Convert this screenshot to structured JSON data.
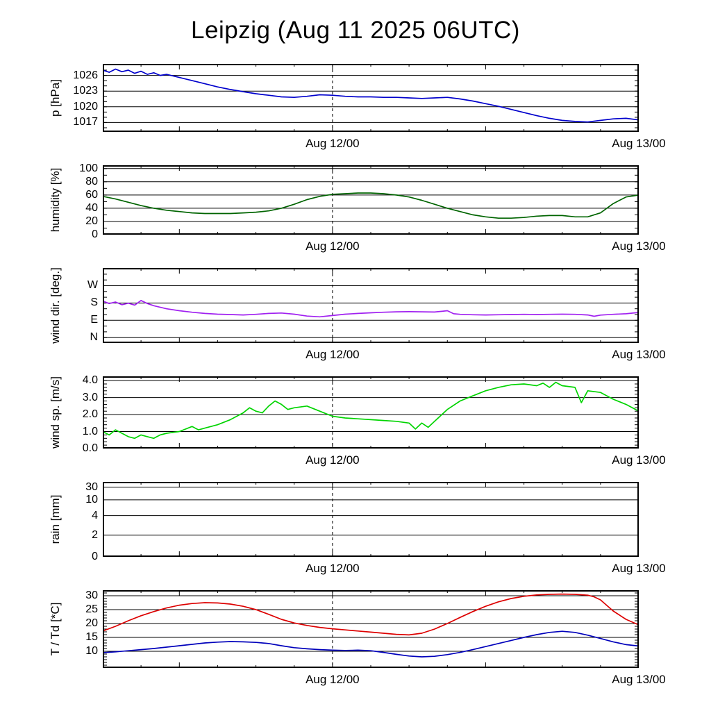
{
  "title": "Leipzig (Aug 11 2025 06UTC)",
  "colors": {
    "pressure": "#0000cc",
    "humidity": "#006400",
    "wind_direction": "#a020f0",
    "wind_speed": "#00d400",
    "rain": "#000000",
    "temperature": "#dd0000",
    "dewpoint": "#0000bb",
    "axes": "#000000",
    "background": "#ffffff"
  },
  "chart_data": {
    "type": "line",
    "title": "Leipzig (Aug 11 2025 06UTC)",
    "x": {
      "description": "time axis, hours since Aug 11 2025 00UTC, plot spans Aug 11 06UTC to Aug 13 00UTC",
      "start": 6,
      "end": 48,
      "major_ticks": [
        {
          "hour": 24,
          "label": "Aug 12/00"
        },
        {
          "hour": 48,
          "label": "Aug 13/00"
        }
      ],
      "dashed_line_hour": 24
    },
    "panels": [
      {
        "id": "pressure",
        "ylabel": "p [hPa]",
        "ylim": [
          1015.2,
          1028.2
        ],
        "yminor": 1,
        "yticks": [
          {
            "value": 1017,
            "label": "1017"
          },
          {
            "value": 1020,
            "label": "1020"
          },
          {
            "value": 1023,
            "label": "1023"
          },
          {
            "value": 1026,
            "label": "1026"
          }
        ],
        "series": [
          {
            "name": "pressure",
            "color": "#0000cc",
            "hours": [
              6,
              6.5,
              7,
              7.5,
              8,
              8.5,
              9,
              9.5,
              10,
              10.5,
              11,
              12,
              13,
              14,
              15,
              16,
              17,
              18,
              19,
              20,
              21,
              22,
              23,
              24,
              25,
              26,
              27,
              28,
              29,
              30,
              31,
              32,
              33,
              34,
              35,
              36,
              37,
              38,
              39,
              40,
              41,
              42,
              43,
              44,
              45,
              46,
              47,
              48
            ],
            "values": [
              1027.0,
              1026.6,
              1027.2,
              1026.7,
              1027.0,
              1026.4,
              1026.8,
              1026.2,
              1026.5,
              1026.0,
              1026.2,
              1025.6,
              1025.0,
              1024.4,
              1023.8,
              1023.3,
              1022.9,
              1022.5,
              1022.2,
              1021.9,
              1021.8,
              1022.0,
              1022.3,
              1022.2,
              1022.0,
              1021.9,
              1021.9,
              1021.8,
              1021.8,
              1021.7,
              1021.6,
              1021.7,
              1021.8,
              1021.5,
              1021.1,
              1020.6,
              1020.1,
              1019.5,
              1018.9,
              1018.3,
              1017.8,
              1017.4,
              1017.2,
              1017.1,
              1017.4,
              1017.7,
              1017.8,
              1017.5
            ]
          }
        ]
      },
      {
        "id": "humidity",
        "ylabel": "humidity [%]",
        "ylim": [
          0,
          105
        ],
        "yminor": 10,
        "yticks": [
          {
            "value": 0,
            "label": "0"
          },
          {
            "value": 20,
            "label": "20"
          },
          {
            "value": 40,
            "label": "40"
          },
          {
            "value": 60,
            "label": "60"
          },
          {
            "value": 80,
            "label": "80"
          },
          {
            "value": 100,
            "label": "100"
          }
        ],
        "series": [
          {
            "name": "humidity",
            "color": "#006400",
            "hours": [
              6,
              7,
              8,
              9,
              10,
              11,
              12,
              13,
              14,
              15,
              16,
              17,
              18,
              19,
              20,
              21,
              22,
              23,
              24,
              25,
              26,
              27,
              28,
              29,
              30,
              31,
              32,
              33,
              34,
              35,
              36,
              37,
              38,
              39,
              40,
              41,
              42,
              43,
              44,
              45,
              46,
              47,
              48
            ],
            "values": [
              58,
              54,
              49,
              44,
              40,
              37,
              35,
              33,
              32,
              32,
              32,
              33,
              34,
              36,
              40,
              46,
              53,
              58,
              61,
              62,
              63,
              63,
              62,
              60,
              57,
              52,
              46,
              40,
              35,
              30,
              27,
              25,
              25,
              26,
              28,
              29,
              29,
              27,
              27,
              33,
              47,
              57,
              60
            ]
          }
        ]
      },
      {
        "id": "wind-direction",
        "ylabel": "wind dir. [deg.]",
        "ylim": [
          -28,
          362
        ],
        "yminor": 30,
        "yticks": [
          {
            "value": 0,
            "label": "N"
          },
          {
            "value": 90,
            "label": "E"
          },
          {
            "value": 180,
            "label": "S"
          },
          {
            "value": 270,
            "label": "W"
          }
        ],
        "series": [
          {
            "name": "wind direction",
            "color": "#a020f0",
            "hours": [
              6,
              6.5,
              7,
              7.5,
              8,
              8.5,
              9,
              9.5,
              10,
              11,
              12,
              13,
              14,
              15,
              16,
              17,
              18,
              19,
              20,
              21,
              22,
              23,
              24,
              25,
              26,
              27,
              28,
              29,
              30,
              31,
              32,
              33,
              33.5,
              34,
              35,
              36,
              37,
              38,
              39,
              40,
              41,
              42,
              43,
              44,
              44.5,
              45,
              46,
              47,
              48
            ],
            "values": [
              190,
              177,
              185,
              171,
              179,
              169,
              193,
              177,
              166,
              150,
              140,
              132,
              126,
              122,
              120,
              118,
              121,
              126,
              128,
              122,
              112,
              108,
              115,
              122,
              126,
              129,
              132,
              134,
              135,
              134,
              133,
              140,
              124,
              121,
              119,
              118,
              119,
              120,
              121,
              120,
              121,
              122,
              121,
              118,
              111,
              117,
              121,
              124,
              131
            ]
          }
        ]
      },
      {
        "id": "wind-speed",
        "ylabel": "wind sp. [m/s]",
        "ylim": [
          0,
          4.25
        ],
        "yminor": 0.2,
        "yticks": [
          {
            "value": 0,
            "label": "0.0"
          },
          {
            "value": 1,
            "label": "1.0"
          },
          {
            "value": 2,
            "label": "2.0"
          },
          {
            "value": 3,
            "label": "3.0"
          },
          {
            "value": 4,
            "label": "4.0"
          }
        ],
        "series": [
          {
            "name": "wind speed",
            "color": "#00d400",
            "hours": [
              6,
              6.5,
              7,
              7.5,
              8,
              8.5,
              9,
              9.5,
              10,
              10.5,
              11,
              12,
              13,
              13.5,
              14,
              15,
              16,
              17,
              17.5,
              18,
              18.5,
              19,
              19.5,
              20,
              20.5,
              21,
              22,
              23,
              24,
              25,
              26,
              27,
              28,
              29,
              30,
              30.5,
              31,
              31.5,
              32,
              33,
              34,
              35,
              36,
              37,
              38,
              39,
              40,
              40.5,
              41,
              41.5,
              42,
              43,
              43.5,
              44,
              45,
              46,
              47,
              48
            ],
            "values": [
              1.0,
              0.8,
              1.1,
              0.9,
              0.7,
              0.6,
              0.8,
              0.7,
              0.6,
              0.8,
              0.9,
              1.0,
              1.3,
              1.1,
              1.2,
              1.4,
              1.7,
              2.1,
              2.4,
              2.2,
              2.1,
              2.5,
              2.8,
              2.6,
              2.3,
              2.4,
              2.5,
              2.2,
              1.9,
              1.8,
              1.75,
              1.7,
              1.65,
              1.6,
              1.5,
              1.15,
              1.5,
              1.25,
              1.6,
              2.3,
              2.8,
              3.1,
              3.4,
              3.6,
              3.75,
              3.8,
              3.7,
              3.85,
              3.6,
              3.9,
              3.7,
              3.6,
              2.7,
              3.4,
              3.3,
              2.9,
              2.6,
              2.2
            ]
          }
        ]
      },
      {
        "id": "rain",
        "ylabel": "rain [mm]",
        "scale": "custom",
        "yticks": [
          {
            "value": 0,
            "label": "0",
            "pos": 0.0
          },
          {
            "value": 2,
            "label": "2",
            "pos": 0.29
          },
          {
            "value": 4,
            "label": "4",
            "pos": 0.55
          },
          {
            "value": 10,
            "label": "10",
            "pos": 0.76
          },
          {
            "value": 30,
            "label": "30",
            "pos": 0.93
          }
        ],
        "series": [
          {
            "name": "rain",
            "color": "#000000",
            "hours": [
              6,
              12,
              18,
              24,
              30,
              36,
              42,
              48
            ],
            "values": [
              0,
              0,
              0,
              0,
              0,
              0,
              0,
              0
            ]
          }
        ]
      },
      {
        "id": "temperature",
        "ylabel": "T / Td [*C]",
        "ylim": [
          4,
          32
        ],
        "yminor": 1,
        "yticks": [
          {
            "value": 10,
            "label": "10"
          },
          {
            "value": 15,
            "label": "15"
          },
          {
            "value": 20,
            "label": "20"
          },
          {
            "value": 25,
            "label": "25"
          },
          {
            "value": 30,
            "label": "30"
          }
        ],
        "series": [
          {
            "name": "temperature T",
            "color": "#dd0000",
            "hours": [
              6,
              7,
              8,
              9,
              10,
              11,
              12,
              13,
              14,
              15,
              16,
              17,
              18,
              19,
              20,
              21,
              22,
              23,
              24,
              25,
              26,
              27,
              28,
              29,
              30,
              31,
              32,
              33,
              34,
              35,
              36,
              37,
              38,
              39,
              40,
              41,
              42,
              43,
              44,
              44.5,
              45,
              45.5,
              46,
              47,
              48
            ],
            "values": [
              17.3,
              19.0,
              21.0,
              22.8,
              24.3,
              25.6,
              26.6,
              27.2,
              27.5,
              27.4,
              27.0,
              26.2,
              25.0,
              23.3,
              21.5,
              20.2,
              19.3,
              18.6,
              18.1,
              17.7,
              17.3,
              16.9,
              16.5,
              16.1,
              15.9,
              16.5,
              18.0,
              20.0,
              22.2,
              24.3,
              26.2,
              27.8,
              29.0,
              29.8,
              30.3,
              30.5,
              30.6,
              30.5,
              30.2,
              29.6,
              28.5,
              26.5,
              24.5,
              21.5,
              19.5
            ]
          },
          {
            "name": "dewpoint Td",
            "color": "#0000bb",
            "hours": [
              6,
              7,
              8,
              9,
              10,
              11,
              12,
              13,
              14,
              15,
              16,
              17,
              18,
              19,
              20,
              21,
              22,
              23,
              24,
              25,
              26,
              27,
              28,
              29,
              30,
              31,
              32,
              33,
              34,
              35,
              36,
              37,
              38,
              39,
              40,
              41,
              42,
              43,
              44,
              45,
              46,
              47,
              48
            ],
            "values": [
              9.5,
              9.8,
              10.2,
              10.6,
              11.0,
              11.5,
              12.0,
              12.5,
              13.0,
              13.3,
              13.5,
              13.4,
              13.2,
              12.8,
              12.0,
              11.3,
              10.9,
              10.6,
              10.4,
              10.3,
              10.4,
              10.2,
              9.6,
              8.9,
              8.3,
              8.0,
              8.2,
              8.8,
              9.6,
              10.6,
              11.7,
              12.8,
              13.9,
              15.0,
              16.0,
              16.8,
              17.2,
              16.8,
              15.8,
              14.6,
              13.4,
              12.4,
              11.9
            ]
          }
        ]
      }
    ]
  }
}
